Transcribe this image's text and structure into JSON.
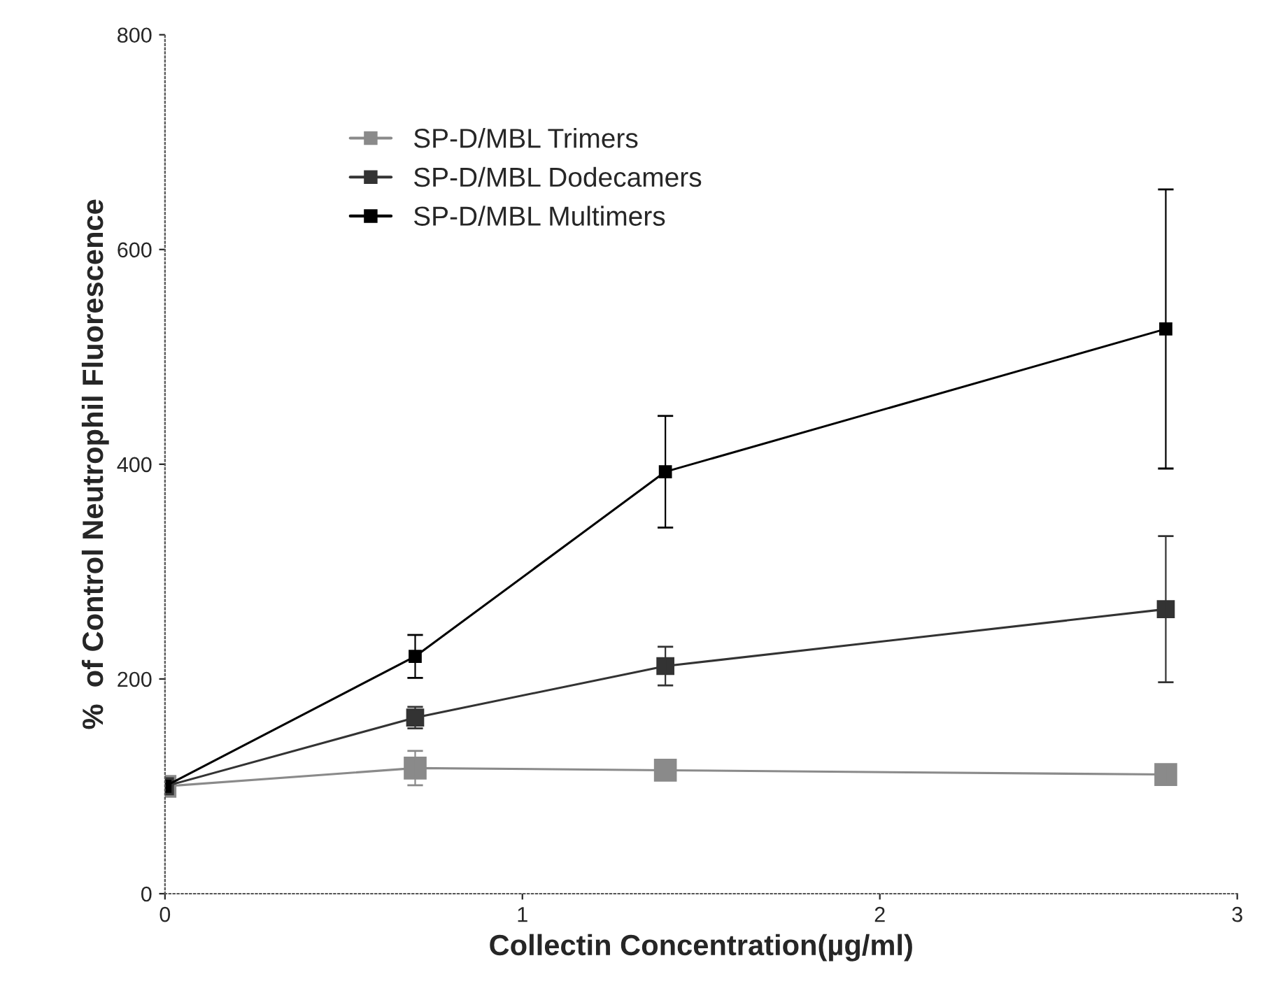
{
  "chart_data": {
    "type": "line",
    "xlabel": "Collectin Concentration(µg/ml)",
    "ylabel": "%  of Control Neutrophil Fluorescence",
    "x": [
      0,
      0.7,
      1.4,
      2.8
    ],
    "series": [
      {
        "name": "SP-D/MBL Trimers",
        "color": "#8a8a8a",
        "values": [
          100,
          117,
          115,
          111
        ],
        "errors": [
          null,
          16,
          7,
          9
        ]
      },
      {
        "name": "SP-D/MBL Dodecamers",
        "color": "#333333",
        "values": [
          100,
          164,
          212,
          265
        ],
        "errors": [
          null,
          10,
          18,
          68
        ]
      },
      {
        "name": "SP-D/MBL Multimers",
        "color": "#000000",
        "values": [
          100,
          221,
          393,
          526
        ],
        "errors": [
          null,
          20,
          52,
          130
        ]
      }
    ],
    "xlim": [
      0,
      3
    ],
    "xticks": [
      0,
      1,
      2,
      3
    ],
    "ylim": [
      0,
      800
    ],
    "yticks": [
      0,
      200,
      400,
      600,
      800
    ],
    "marker": "square",
    "line_style": "solid",
    "legend": "top left",
    "grid": false
  }
}
